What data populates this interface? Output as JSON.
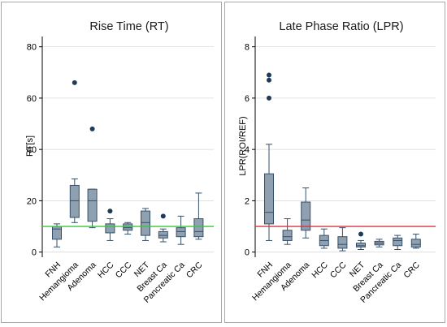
{
  "chart_data": [
    {
      "type": "box",
      "title": "Rise Time (RT)",
      "ylabel": "RT[s]",
      "xlabel": "",
      "ylim": [
        -2,
        84
      ],
      "yticks": [
        0,
        20,
        40,
        60,
        80
      ],
      "grid": true,
      "reference_line": {
        "value": 10,
        "color": "#33cc33"
      },
      "box_color": "#8fa0b0",
      "categories": [
        "FNH",
        "Hemangioma",
        "Adenoma",
        "HCC",
        "CCC",
        "NET",
        "Breast Ca",
        "Pancreatic Ca",
        "CRC"
      ],
      "boxes": [
        {
          "whislo": 2,
          "q1": 5,
          "med": 9,
          "q3": 10,
          "whishi": 11,
          "fliers": []
        },
        {
          "whislo": 11.5,
          "q1": 13.5,
          "med": 20,
          "q3": 26,
          "whishi": 28.5,
          "fliers": [
            66
          ]
        },
        {
          "whislo": 9.5,
          "q1": 12,
          "med": 20,
          "q3": 24.5,
          "whishi": 24.5,
          "fliers": [
            48
          ]
        },
        {
          "whislo": 4.5,
          "q1": 7.5,
          "med": 10,
          "q3": 11,
          "whishi": 13,
          "fliers": [
            16
          ]
        },
        {
          "whislo": 7,
          "q1": 8.5,
          "med": 9.5,
          "q3": 11,
          "whishi": 11.5,
          "fliers": []
        },
        {
          "whislo": 4.5,
          "q1": 6.5,
          "med": 11.5,
          "q3": 16,
          "whishi": 17,
          "fliers": []
        },
        {
          "whislo": 4,
          "q1": 5.5,
          "med": 6.5,
          "q3": 8,
          "whishi": 9,
          "fliers": [
            14
          ]
        },
        {
          "whislo": 3,
          "q1": 6,
          "med": 8,
          "q3": 9.5,
          "whishi": 14,
          "fliers": []
        },
        {
          "whislo": 5,
          "q1": 6,
          "med": 8,
          "q3": 13,
          "whishi": 23,
          "fliers": []
        }
      ]
    },
    {
      "type": "box",
      "title": "Late Phase Ratio (LPR)",
      "ylabel": "LPR(ROI/REF)",
      "xlabel": "",
      "ylim": [
        -0.2,
        8.4
      ],
      "yticks": [
        0,
        2,
        4,
        6,
        8
      ],
      "grid": true,
      "reference_line": {
        "value": 1,
        "color": "#e03040"
      },
      "box_color": "#8fa0b0",
      "categories": [
        "FNH",
        "Hemangioma",
        "Adenoma",
        "HCC",
        "CCC",
        "NET",
        "Breast Ca",
        "Pancreatic Ca",
        "CRC"
      ],
      "boxes": [
        {
          "whislo": 0.45,
          "q1": 1.1,
          "med": 1.55,
          "q3": 3.05,
          "whishi": 4.2,
          "fliers": [
            6.0,
            6.7,
            6.9
          ]
        },
        {
          "whislo": 0.3,
          "q1": 0.45,
          "med": 0.6,
          "q3": 0.85,
          "whishi": 1.3,
          "fliers": []
        },
        {
          "whislo": 0.55,
          "q1": 0.85,
          "med": 1.25,
          "q3": 1.95,
          "whishi": 2.5,
          "fliers": []
        },
        {
          "whislo": 0.15,
          "q1": 0.25,
          "med": 0.45,
          "q3": 0.65,
          "whishi": 0.9,
          "fliers": []
        },
        {
          "whislo": 0.05,
          "q1": 0.15,
          "med": 0.3,
          "q3": 0.6,
          "whishi": 0.95,
          "fliers": []
        },
        {
          "whislo": 0.1,
          "q1": 0.2,
          "med": 0.25,
          "q3": 0.35,
          "whishi": 0.45,
          "fliers": [
            0.7
          ]
        },
        {
          "whislo": 0.2,
          "q1": 0.28,
          "med": 0.35,
          "q3": 0.42,
          "whishi": 0.5,
          "fliers": []
        },
        {
          "whislo": 0.1,
          "q1": 0.25,
          "med": 0.45,
          "q3": 0.55,
          "whishi": 0.65,
          "fliers": []
        },
        {
          "whislo": 0.15,
          "q1": 0.2,
          "med": 0.3,
          "q3": 0.5,
          "whishi": 0.7,
          "fliers": []
        }
      ]
    }
  ]
}
